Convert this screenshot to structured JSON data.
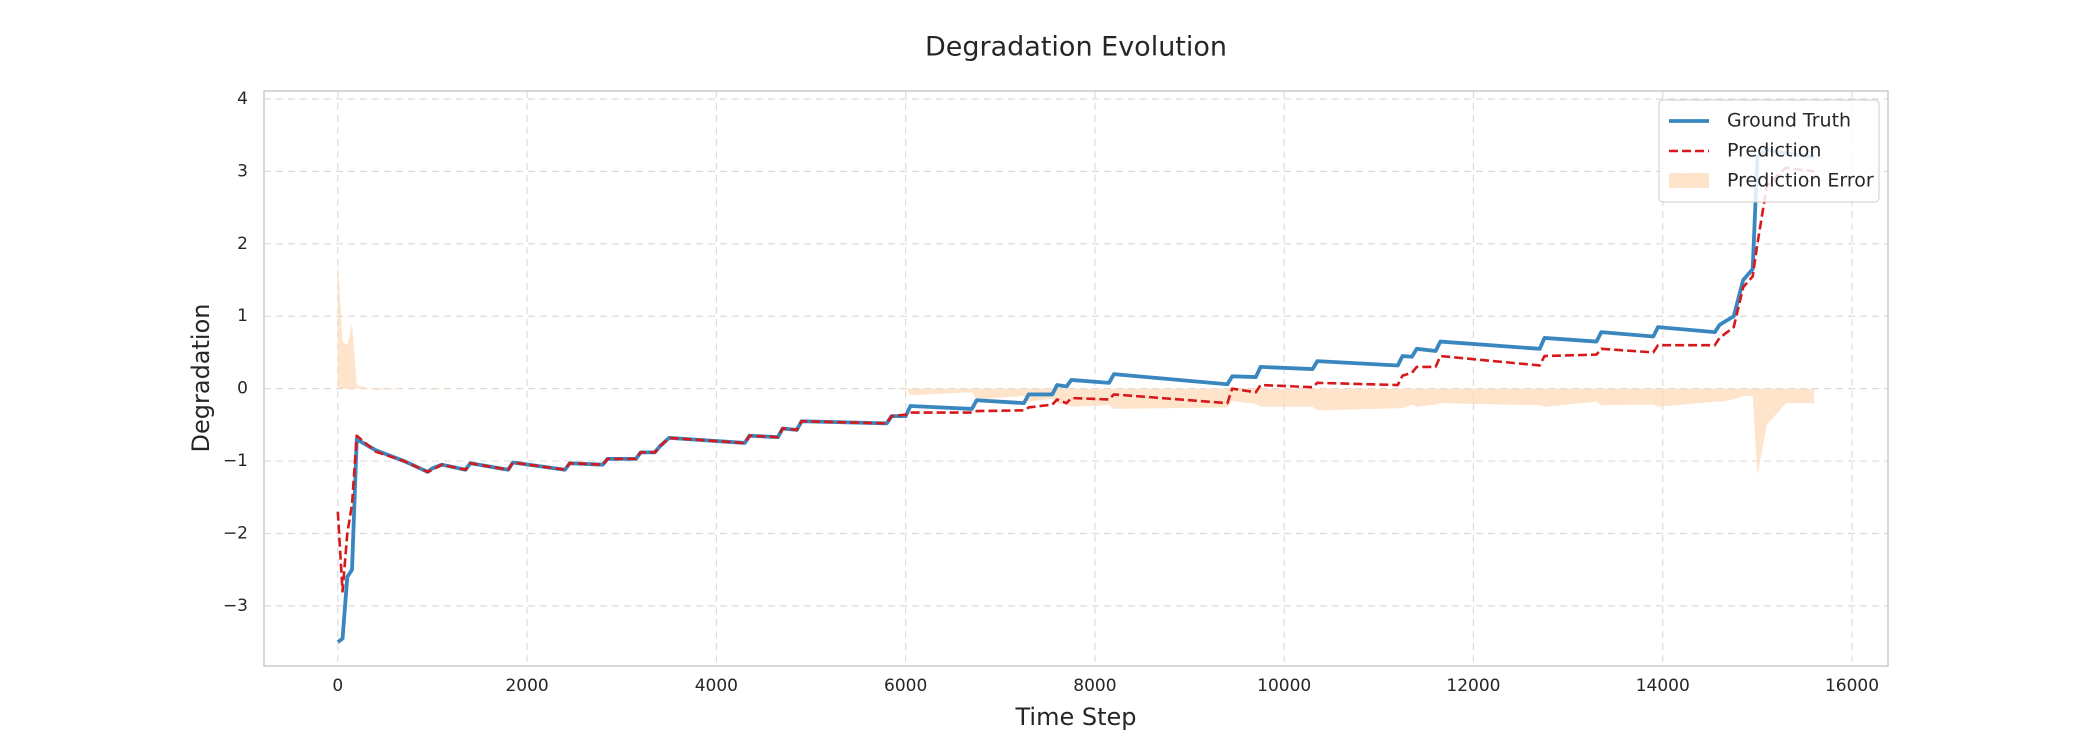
{
  "chart_data": {
    "type": "line",
    "title": "Degradation Evolution",
    "x_label": "Time Step",
    "y_label": "Degradation",
    "x": [
      0,
      50,
      100,
      150,
      200,
      400,
      700,
      950,
      1000,
      1100,
      1350,
      1400,
      1800,
      1850,
      2400,
      2450,
      2800,
      2850,
      3150,
      3200,
      3350,
      3400,
      3500,
      4300,
      4350,
      4650,
      4700,
      4850,
      4900,
      5800,
      5850,
      6000,
      6050,
      6700,
      6750,
      7250,
      7300,
      7550,
      7600,
      7700,
      7750,
      8150,
      8200,
      9400,
      9450,
      9700,
      9750,
      10300,
      10350,
      11200,
      11250,
      11350,
      11400,
      11600,
      11650,
      12700,
      12750,
      13300,
      13350,
      13900,
      13950,
      14550,
      14600,
      14750,
      14850,
      14950,
      15000,
      15100,
      15300,
      15600
    ],
    "series": [
      {
        "name": "Ground Truth",
        "color": "#3a87c0",
        "line_style": "solid",
        "values": [
          -3.5,
          -3.45,
          -2.6,
          -2.5,
          -0.7,
          -0.85,
          -1.0,
          -1.15,
          -1.1,
          -1.05,
          -1.12,
          -1.03,
          -1.12,
          -1.02,
          -1.12,
          -1.03,
          -1.05,
          -0.97,
          -0.97,
          -0.88,
          -0.88,
          -0.8,
          -0.68,
          -0.75,
          -0.65,
          -0.67,
          -0.55,
          -0.57,
          -0.45,
          -0.48,
          -0.38,
          -0.38,
          -0.24,
          -0.28,
          -0.16,
          -0.2,
          -0.08,
          -0.08,
          0.05,
          0.03,
          0.12,
          0.08,
          0.2,
          0.06,
          0.17,
          0.16,
          0.3,
          0.27,
          0.38,
          0.32,
          0.45,
          0.44,
          0.55,
          0.52,
          0.65,
          0.55,
          0.7,
          0.65,
          0.78,
          0.72,
          0.85,
          0.78,
          0.88,
          1.0,
          1.5,
          1.65,
          3.2,
          3.3,
          3.25,
          3.2
        ]
      },
      {
        "name": "Prediction",
        "color": "#d7191c",
        "line_style": "dashed",
        "values": [
          -1.7,
          -2.8,
          -2.0,
          -1.6,
          -0.65,
          -0.87,
          -1.0,
          -1.15,
          -1.12,
          -1.05,
          -1.12,
          -1.03,
          -1.12,
          -1.02,
          -1.12,
          -1.03,
          -1.05,
          -0.97,
          -0.97,
          -0.88,
          -0.88,
          -0.8,
          -0.68,
          -0.75,
          -0.65,
          -0.67,
          -0.55,
          -0.57,
          -0.45,
          -0.48,
          -0.38,
          -0.36,
          -0.33,
          -0.33,
          -0.31,
          -0.3,
          -0.26,
          -0.22,
          -0.15,
          -0.2,
          -0.13,
          -0.15,
          -0.08,
          -0.2,
          0.0,
          -0.05,
          0.05,
          0.02,
          0.08,
          0.05,
          0.18,
          0.22,
          0.3,
          0.3,
          0.45,
          0.32,
          0.45,
          0.47,
          0.55,
          0.5,
          0.6,
          0.6,
          0.7,
          0.85,
          1.4,
          1.55,
          2.0,
          2.8,
          3.05,
          3.0
        ]
      },
      {
        "name": "Prediction Error",
        "color": "#fdd9b5",
        "line_style": "fill",
        "values": [
          1.8,
          0.65,
          0.6,
          0.9,
          0.05,
          -0.02,
          0,
          0,
          -0.02,
          0,
          0,
          0,
          0,
          0,
          0,
          0,
          0,
          0,
          0,
          0,
          0,
          0,
          0,
          0,
          0,
          0,
          0,
          0,
          0,
          0,
          0,
          0.02,
          -0.09,
          -0.05,
          -0.15,
          -0.1,
          -0.18,
          -0.14,
          -0.2,
          -0.23,
          -0.25,
          -0.23,
          -0.28,
          -0.26,
          -0.17,
          -0.21,
          -0.25,
          -0.25,
          -0.3,
          -0.27,
          -0.27,
          -0.22,
          -0.25,
          -0.22,
          -0.2,
          -0.23,
          -0.25,
          -0.18,
          -0.23,
          -0.22,
          -0.25,
          -0.18,
          -0.18,
          -0.15,
          -0.1,
          -0.1,
          -1.2,
          -0.5,
          -0.2,
          -0.2
        ]
      }
    ],
    "xlim": [
      -780,
      16380
    ],
    "ylim": [
      -3.83,
      4.11
    ],
    "xticks": [
      0,
      2000,
      4000,
      6000,
      8000,
      10000,
      12000,
      14000,
      16000
    ],
    "yticks": [
      {
        "value": -3,
        "label": "−3"
      },
      {
        "value": -2,
        "label": "−2"
      },
      {
        "value": -1,
        "label": "−1"
      },
      0,
      1,
      2,
      3,
      4
    ],
    "grid": true,
    "legend": "upper right"
  }
}
